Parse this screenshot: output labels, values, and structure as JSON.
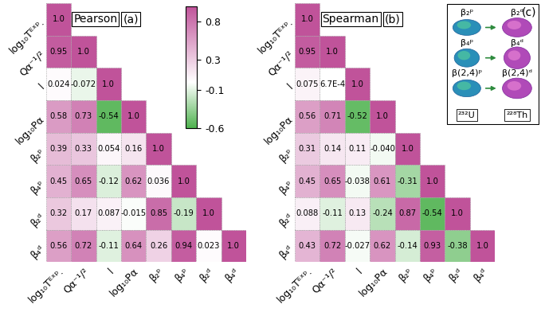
{
  "chart_data": [
    {
      "type": "heatmap",
      "title": "Pearson",
      "subtitle": "(a)",
      "categories": [
        "log₁₀Tᴱˣᵖ.",
        "Qα⁻¹/²",
        "l",
        "log₁₀Pα",
        "β₂ᵖ",
        "β₄ᵖ",
        "β₂ᵈ",
        "β₄ᵈ"
      ],
      "values": [
        [
          1.0
        ],
        [
          0.95,
          1.0
        ],
        [
          0.024,
          -0.072,
          1.0
        ],
        [
          0.58,
          0.73,
          -0.54,
          1.0
        ],
        [
          0.39,
          0.33,
          0.054,
          0.16,
          1.0
        ],
        [
          0.45,
          0.65,
          -0.12,
          0.62,
          0.036,
          1.0
        ],
        [
          0.32,
          0.17,
          0.087,
          -0.015,
          0.85,
          -0.19,
          1.0
        ],
        [
          0.56,
          0.72,
          -0.11,
          0.64,
          0.26,
          0.94,
          0.023,
          1.0
        ]
      ],
      "value_labels": [
        [
          "1.0"
        ],
        [
          "0.95",
          "1.0"
        ],
        [
          "0.024",
          "-0.072",
          "1.0"
        ],
        [
          "0.58",
          "0.73",
          "-0.54",
          "1.0"
        ],
        [
          "0.39",
          "0.33",
          "0.054",
          "0.16",
          "1.0"
        ],
        [
          "0.45",
          "0.65",
          "-0.12",
          "0.62",
          "0.036",
          "1.0"
        ],
        [
          "0.32",
          "0.17",
          "0.087",
          "-0.015",
          "0.85",
          "-0.19",
          "1.0"
        ],
        [
          "0.56",
          "0.72",
          "-0.11",
          "0.64",
          "0.26",
          "0.94",
          "0.023",
          "1.0"
        ]
      ],
      "data_labels": true,
      "colorbar": {
        "range": [
          -0.6,
          1.0
        ],
        "ticks": [
          0.8,
          0.3,
          -0.1,
          -0.6
        ]
      }
    },
    {
      "type": "heatmap",
      "title": "Spearman",
      "subtitle": "(b)",
      "categories": [
        "log₁₀Tᴱˣᵖ.",
        "Qα⁻¹/²",
        "l",
        "log₁₀Pα",
        "β₂ᵖ",
        "β₄ᵖ",
        "β₂ᵈ",
        "β₄ᵈ"
      ],
      "values": [
        [
          1.0
        ],
        [
          0.95,
          1.0
        ],
        [
          0.075,
          0.00067,
          1.0
        ],
        [
          0.56,
          0.71,
          -0.52,
          1.0
        ],
        [
          0.31,
          0.14,
          0.11,
          -0.04,
          1.0
        ],
        [
          0.45,
          0.65,
          -0.038,
          0.61,
          -0.31,
          1.0
        ],
        [
          0.088,
          -0.11,
          0.13,
          -0.24,
          0.87,
          -0.54,
          1.0
        ],
        [
          0.43,
          0.72,
          -0.027,
          0.62,
          -0.14,
          0.93,
          -0.38,
          1.0
        ]
      ],
      "value_labels": [
        [
          "1.0"
        ],
        [
          "0.95",
          "1.0"
        ],
        [
          "0.075",
          "6.7E-4",
          "1.0"
        ],
        [
          "0.56",
          "0.71",
          "-0.52",
          "1.0"
        ],
        [
          "0.31",
          "0.14",
          "0.11",
          "-0.040",
          "1.0"
        ],
        [
          "0.45",
          "0.65",
          "-0.038",
          "0.61",
          "-0.31",
          "1.0"
        ],
        [
          "0.088",
          "-0.11",
          "0.13",
          "-0.24",
          "0.87",
          "-0.54",
          "1.0"
        ],
        [
          "0.43",
          "0.72",
          "-0.027",
          "0.62",
          "-0.14",
          "0.93",
          "-0.38",
          "1.0"
        ]
      ],
      "data_labels": true
    }
  ],
  "inset": {
    "title": "(c)",
    "pairs": [
      [
        "β₂ᵖ",
        "β₂ᵈ"
      ],
      [
        "β₄ᵖ",
        "β₄ᵈ"
      ],
      [
        "β(2,4)ᵖ",
        "β(2,4)ᵈ"
      ]
    ],
    "nuclei": [
      "²³²U",
      "²²⁸Th"
    ]
  }
}
